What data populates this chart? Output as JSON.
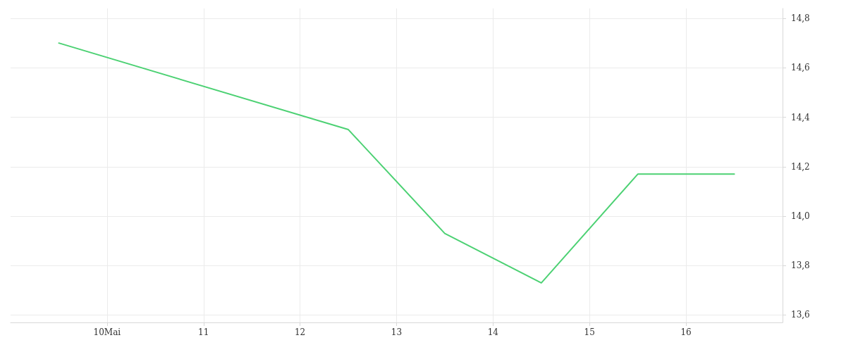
{
  "chart_data": {
    "type": "line",
    "x": [
      9.5,
      12.5,
      13.5,
      14.5,
      15.5,
      16.5
    ],
    "series": [
      {
        "color": "#4cd173",
        "values": [
          14.7,
          14.35,
          13.93,
          13.73,
          14.17,
          14.17
        ]
      }
    ],
    "xlim": [
      9,
      17
    ],
    "xticks": [
      {
        "value": 10,
        "label": "10Mai"
      },
      11,
      12,
      13,
      14,
      15,
      16
    ],
    "ylim": [
      13.57,
      14.84
    ],
    "yticks": [
      {
        "value": 13.6,
        "label": "13,6"
      },
      {
        "value": 13.8,
        "label": "13,8"
      },
      {
        "value": 14.0,
        "label": "14,0"
      },
      {
        "value": 14.2,
        "label": "14,2"
      },
      {
        "value": 14.4,
        "label": "14,4"
      },
      {
        "value": 14.6,
        "label": "14,6"
      },
      {
        "value": 14.8,
        "label": "14,8"
      }
    ],
    "grid": true,
    "marker": "none",
    "line_style": "solid"
  }
}
